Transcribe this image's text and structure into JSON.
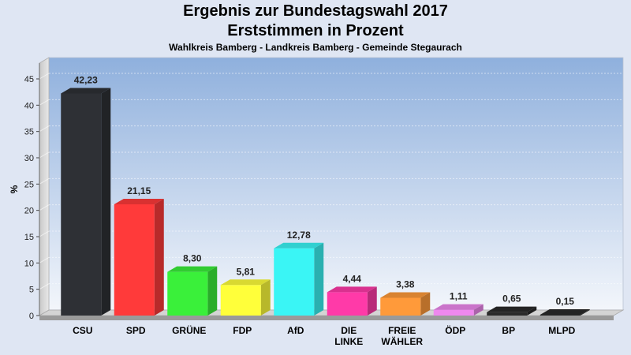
{
  "chart_data": {
    "type": "bar",
    "title": "Ergebnis zur Bundestagswahl 2017",
    "subtitle": "Erststimmen in Prozent",
    "subtitle2": "Wahlkreis Bamberg - Landkreis Bamberg - Gemeinde Stegaurach",
    "ylabel": "%",
    "ylim": [
      0,
      48
    ],
    "yticks": [
      0,
      5,
      10,
      15,
      20,
      25,
      30,
      35,
      40,
      45
    ],
    "categories": [
      "CSU",
      "SPD",
      "GRÜNE",
      "FDP",
      "AfD",
      "DIE LINKE",
      "FREIE WÄHLER",
      "ÖDP",
      "BP",
      "MLPD"
    ],
    "values": [
      42.23,
      21.15,
      8.3,
      5.81,
      12.78,
      4.44,
      3.38,
      1.11,
      0.65,
      0.15
    ],
    "value_labels": [
      "42,23",
      "21,15",
      "8,30",
      "5,81",
      "12,78",
      "4,44",
      "3,38",
      "1,11",
      "0,65",
      "0,15"
    ],
    "colors": [
      "#2e3035",
      "#ff3a3a",
      "#3af03a",
      "#ffff3a",
      "#3af5f5",
      "#ff3aa8",
      "#ff9a3a",
      "#ee88ee",
      "#2a2a2a",
      "#2a2a2a"
    ],
    "grid": true
  }
}
